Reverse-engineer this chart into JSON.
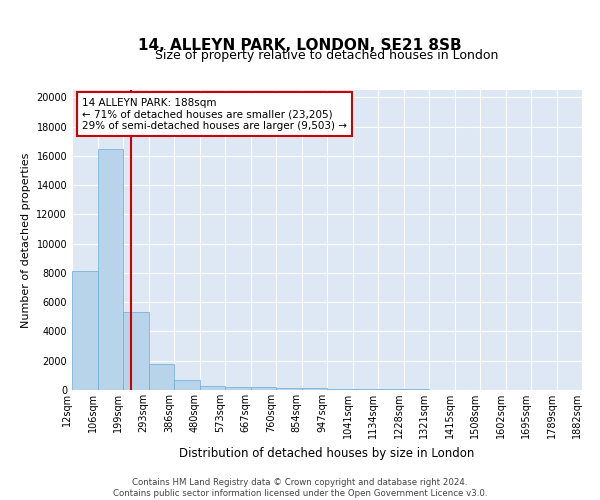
{
  "title1": "14, ALLEYN PARK, LONDON, SE21 8SB",
  "title2": "Size of property relative to detached houses in London",
  "xlabel": "Distribution of detached houses by size in London",
  "ylabel": "Number of detached properties",
  "bar_values": [
    8100,
    16500,
    5300,
    1750,
    700,
    300,
    230,
    200,
    160,
    130,
    80,
    60,
    50,
    40,
    30,
    20,
    15,
    10,
    8,
    5
  ],
  "x_labels_all": [
    "12sqm",
    "106sqm",
    "199sqm",
    "293sqm",
    "386sqm",
    "480sqm",
    "573sqm",
    "667sqm",
    "760sqm",
    "854sqm",
    "947sqm",
    "1041sqm",
    "1134sqm",
    "1228sqm",
    "1321sqm",
    "1415sqm",
    "1508sqm",
    "1602sqm",
    "1695sqm",
    "1789sqm",
    "1882sqm"
  ],
  "bar_color": "#b8d4ea",
  "bar_edge_color": "#6aaad4",
  "red_line_x": 1.82,
  "annotation_text": "14 ALLEYN PARK: 188sqm\n← 71% of detached houses are smaller (23,205)\n29% of semi-detached houses are larger (9,503) →",
  "annotation_box_color": "#ffffff",
  "annotation_box_edge": "#cc0000",
  "red_line_color": "#cc0000",
  "ylim": [
    0,
    20500
  ],
  "yticks": [
    0,
    2000,
    4000,
    6000,
    8000,
    10000,
    12000,
    14000,
    16000,
    18000,
    20000
  ],
  "bg_color": "#dde8f4",
  "footer": "Contains HM Land Registry data © Crown copyright and database right 2024.\nContains public sector information licensed under the Open Government Licence v3.0.",
  "title1_fontsize": 11,
  "title2_fontsize": 9,
  "xlabel_fontsize": 8.5,
  "ylabel_fontsize": 8,
  "tick_fontsize": 7,
  "annot_fontsize": 7.5
}
